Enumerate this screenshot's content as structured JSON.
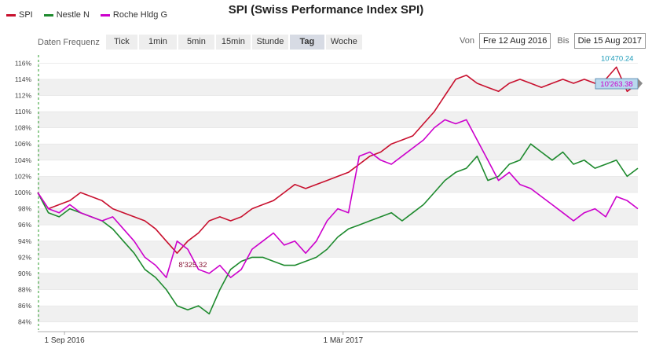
{
  "title": "SPI (Swiss Performance Index SPI)",
  "legend": [
    {
      "name": "SPI",
      "color": "#c8102e"
    },
    {
      "name": "Nestle N",
      "color": "#1e8a2e"
    },
    {
      "name": "Roche Hldg G",
      "color": "#cc00cc"
    }
  ],
  "toolbar": {
    "frequency_label": "Daten Frequenz",
    "buttons": [
      "Tick",
      "1min",
      "5min",
      "15min",
      "Stunde",
      "Tag",
      "Woche"
    ],
    "active": "Tag"
  },
  "range": {
    "from_label": "Von",
    "from_value": "Fre 12 Aug 2016",
    "to_label": "Bis",
    "to_value": "Die 15 Aug 2017"
  },
  "annotations": {
    "spi_min_label": "8'325.32",
    "spi_max_label": "10'470.24",
    "spi_last_label": "10'263.38"
  },
  "chart_data": {
    "type": "line",
    "title": "SPI (Swiss Performance Index SPI)",
    "ylim": [
      83,
      117
    ],
    "y_ticks": [
      84,
      86,
      88,
      90,
      92,
      94,
      96,
      98,
      100,
      102,
      104,
      106,
      108,
      110,
      112,
      114,
      116
    ],
    "y_tick_labels": [
      "84%",
      "86%",
      "88%",
      "90%",
      "92%",
      "94%",
      "96%",
      "98%",
      "100%",
      "102%",
      "104%",
      "106%",
      "108%",
      "110%",
      "112%",
      "114%",
      "116%"
    ],
    "x_tick_labels": [
      {
        "label": "1 Sep 2016",
        "x": 5
      },
      {
        "label": "1 Mär 2017",
        "x": 57
      }
    ],
    "x": [
      0,
      2,
      4,
      6,
      8,
      10,
      12,
      14,
      16,
      18,
      20,
      22,
      24,
      26,
      28,
      30,
      32,
      34,
      36,
      38,
      40,
      42,
      44,
      46,
      48,
      50,
      52,
      54,
      56,
      58,
      60,
      62,
      64,
      66,
      68,
      70,
      72,
      74,
      76,
      78,
      80,
      82,
      84,
      86,
      88,
      90,
      92,
      94,
      96,
      98,
      100,
      102,
      104,
      106,
      108,
      110,
      112
    ],
    "series": [
      {
        "name": "SPI",
        "color": "#c8102e",
        "values": [
          100,
          98,
          98.5,
          99,
          100,
          99.5,
          99,
          98,
          97.5,
          97,
          96.5,
          95.5,
          94,
          92.5,
          94,
          95,
          96.5,
          97,
          96.5,
          97,
          98,
          98.5,
          99,
          100,
          101,
          100.5,
          101,
          101.5,
          102,
          102.5,
          103.5,
          104.5,
          105,
          106,
          106.5,
          107,
          108.5,
          110,
          112,
          114,
          114.5,
          113.5,
          113,
          112.5,
          113.5,
          114,
          113.5,
          113,
          113.5,
          114,
          113.5,
          114,
          113.5,
          114,
          115.5,
          112.5,
          113.5
        ]
      },
      {
        "name": "Nestle N",
        "color": "#1e8a2e",
        "values": [
          100,
          97.5,
          97,
          98,
          97.5,
          97,
          96.5,
          95.5,
          94,
          92.5,
          90.5,
          89.5,
          88,
          86,
          85.5,
          86,
          85,
          88,
          90.5,
          91.5,
          92,
          92,
          91.5,
          91,
          91,
          91.5,
          92,
          93,
          94.5,
          95.5,
          96,
          96.5,
          97,
          97.5,
          96.5,
          97.5,
          98.5,
          100,
          101.5,
          102.5,
          103,
          104.5,
          101.5,
          102,
          103.5,
          104,
          106,
          105,
          104,
          105,
          103.5,
          104,
          103,
          103.5,
          104,
          102,
          103
        ]
      },
      {
        "name": "Roche Hldg G",
        "color": "#cc00cc",
        "values": [
          100,
          98,
          97.5,
          98.5,
          97.5,
          97,
          96.5,
          97,
          95.5,
          94,
          92,
          91,
          89.5,
          94,
          93,
          90.5,
          90,
          91,
          89.5,
          90.5,
          93,
          94,
          95,
          93.5,
          94,
          92.5,
          94,
          96.5,
          98,
          97.5,
          104.5,
          105,
          104,
          103.5,
          104.5,
          105.5,
          106.5,
          108,
          109,
          108.5,
          109,
          106.5,
          104,
          101.5,
          102.5,
          101,
          100.5,
          99.5,
          98.5,
          97.5,
          96.5,
          97.5,
          98,
          97,
          99.5,
          99,
          98
        ]
      }
    ]
  }
}
